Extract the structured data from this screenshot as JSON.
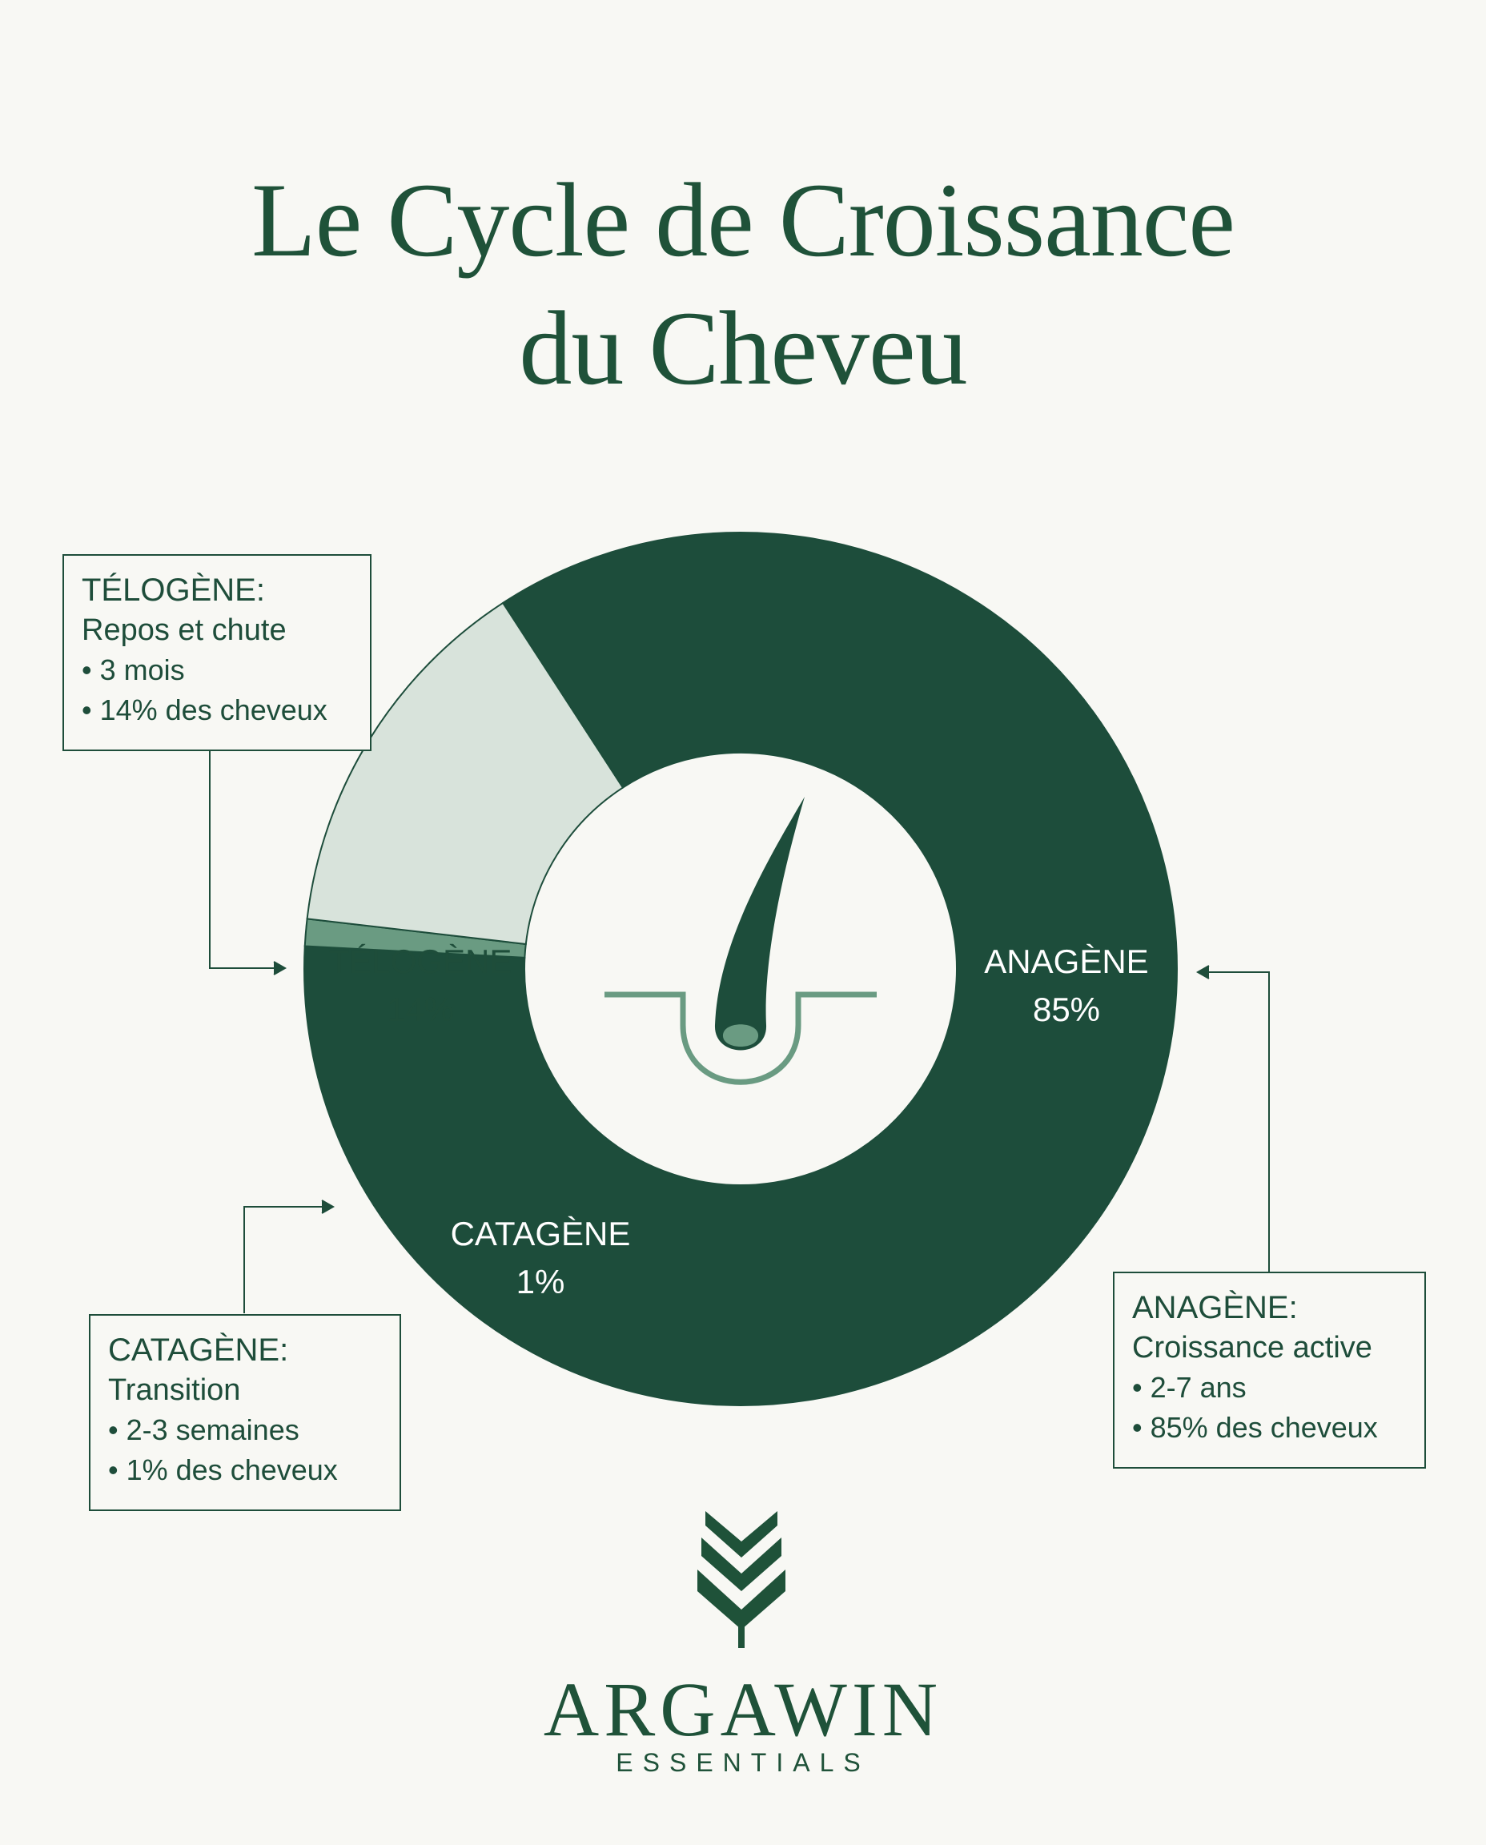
{
  "title_line1": "Le Cycle de Croissance",
  "title_line2": "du Cheveu",
  "chart_data": {
    "type": "pie",
    "categories": [
      "ANAGÈNE",
      "CATAGÈNE",
      "TÉLOGÈNE"
    ],
    "values": [
      85,
      1,
      14
    ],
    "value_labels": [
      "85%",
      "1%",
      "14%"
    ],
    "title": "Le Cycle de Croissance du Cheveu"
  },
  "colors": {
    "anagene": "#1d4d3b",
    "catagene": "#6a9b82",
    "telogene": "#d8e3db",
    "accent": "#1f5239",
    "background": "#f8f8f4"
  },
  "callouts": {
    "telogene": {
      "heading": "TÉLOGÈNE:",
      "subtitle": "Repos et chute",
      "bullets": [
        "3 mois",
        "14% des cheveux"
      ]
    },
    "catagene": {
      "heading": "CATAGÈNE:",
      "subtitle": "Transition",
      "bullets": [
        "2-3 semaines",
        "1% des cheveux"
      ]
    },
    "anagene": {
      "heading": "ANAGÈNE:",
      "subtitle": "Croissance active",
      "bullets": [
        "2-7 ans",
        "85% des cheveux"
      ]
    }
  },
  "center_icon": "hair-follicle-icon",
  "brand": {
    "name": "ARGAWIN",
    "tagline": "ESSENTIALS",
    "logo_icon": "chevron-leaf-icon"
  }
}
